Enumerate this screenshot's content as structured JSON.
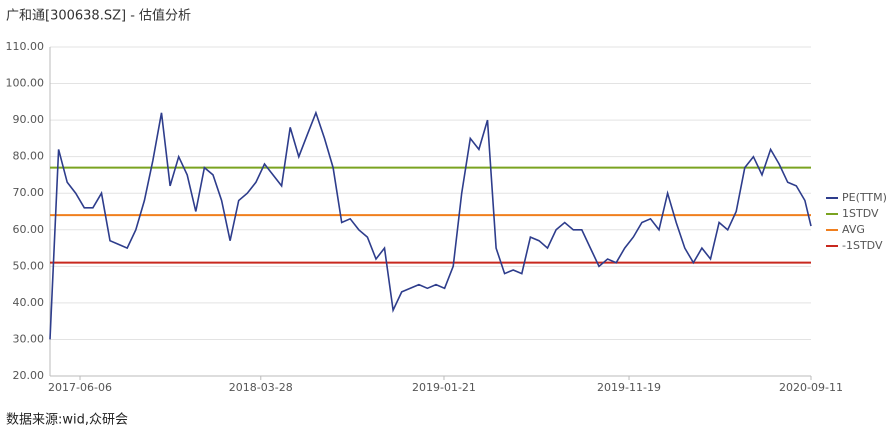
{
  "chart_data": {
    "type": "line",
    "title": "广和通[300638.SZ] - 估值分析",
    "source": "数据来源:wid,众研会",
    "x": [
      "2017-04-18",
      "2017-05-02",
      "2017-05-16",
      "2017-05-30",
      "2017-06-13",
      "2017-06-27",
      "2017-07-11",
      "2017-07-25",
      "2017-08-08",
      "2017-08-22",
      "2017-09-05",
      "2017-09-19",
      "2017-10-03",
      "2017-10-17",
      "2017-10-31",
      "2017-11-14",
      "2017-11-28",
      "2017-12-12",
      "2017-12-26",
      "2018-01-09",
      "2018-01-23",
      "2018-02-06",
      "2018-02-20",
      "2018-03-06",
      "2018-03-20",
      "2018-04-03",
      "2018-04-17",
      "2018-05-01",
      "2018-05-15",
      "2018-05-29",
      "2018-06-12",
      "2018-06-26",
      "2018-07-10",
      "2018-07-24",
      "2018-08-07",
      "2018-08-21",
      "2018-09-04",
      "2018-09-18",
      "2018-10-02",
      "2018-10-16",
      "2018-10-30",
      "2018-11-13",
      "2018-11-27",
      "2018-12-11",
      "2018-12-25",
      "2019-01-08",
      "2019-01-22",
      "2019-02-05",
      "2019-02-19",
      "2019-03-05",
      "2019-03-19",
      "2019-04-02",
      "2019-04-16",
      "2019-04-30",
      "2019-05-14",
      "2019-05-28",
      "2019-06-11",
      "2019-06-25",
      "2019-07-09",
      "2019-07-23",
      "2019-08-06",
      "2019-08-20",
      "2019-09-03",
      "2019-09-17",
      "2019-10-01",
      "2019-10-15",
      "2019-10-29",
      "2019-11-12",
      "2019-11-26",
      "2019-12-10",
      "2019-12-24",
      "2020-01-07",
      "2020-01-21",
      "2020-02-04",
      "2020-02-18",
      "2020-03-03",
      "2020-03-17",
      "2020-03-31",
      "2020-04-14",
      "2020-04-28",
      "2020-05-12",
      "2020-05-26",
      "2020-06-09",
      "2020-06-23",
      "2020-07-07",
      "2020-07-21",
      "2020-08-04",
      "2020-08-18",
      "2020-09-01",
      "2020-09-11"
    ],
    "series": [
      {
        "name": "PE(TTM)",
        "color": "#2e3d8c",
        "values": [
          30,
          82,
          73,
          70,
          66,
          66,
          70,
          57,
          56,
          55,
          60,
          68,
          79,
          92,
          72,
          80,
          75,
          65,
          77,
          75,
          68,
          57,
          68,
          70,
          73,
          78,
          75,
          72,
          88,
          80,
          86,
          92,
          85,
          77,
          62,
          63,
          60,
          58,
          52,
          55,
          38,
          43,
          44,
          45,
          44,
          45,
          44,
          50,
          70,
          85,
          82,
          90,
          55,
          48,
          49,
          48,
          58,
          57,
          55,
          60,
          62,
          60,
          60,
          55,
          50,
          52,
          51,
          55,
          58,
          62,
          63,
          60,
          70,
          62,
          55,
          51,
          55,
          52,
          62,
          60,
          65,
          77,
          80,
          75,
          82,
          78,
          73,
          72,
          68,
          61
        ]
      }
    ],
    "hlines": [
      {
        "name": "1STDV",
        "value": 77,
        "color": "#7aa320"
      },
      {
        "name": "AVG",
        "value": 64,
        "color": "#f07f1e"
      },
      {
        "name": "-1STDV",
        "value": 51,
        "color": "#c8281e"
      }
    ],
    "xlim": [
      "2017-04-18",
      "2020-09-11"
    ],
    "xticks": [
      "2017-06-06",
      "2018-03-28",
      "2019-01-21",
      "2019-11-19",
      "2020-09-11"
    ],
    "ylim": [
      20,
      110
    ],
    "yticks": [
      {
        "value": 20,
        "label": "20.00"
      },
      {
        "value": 30,
        "label": "30.00"
      },
      {
        "value": 40,
        "label": "40.00"
      },
      {
        "value": 50,
        "label": "50.00"
      },
      {
        "value": 60,
        "label": "60.00"
      },
      {
        "value": 70,
        "label": "70.00"
      },
      {
        "value": 80,
        "label": "80.00"
      },
      {
        "value": 90,
        "label": "90.00"
      },
      {
        "value": 100,
        "label": "100.00"
      },
      {
        "value": 110,
        "label": "110.00"
      }
    ],
    "grid": true
  }
}
